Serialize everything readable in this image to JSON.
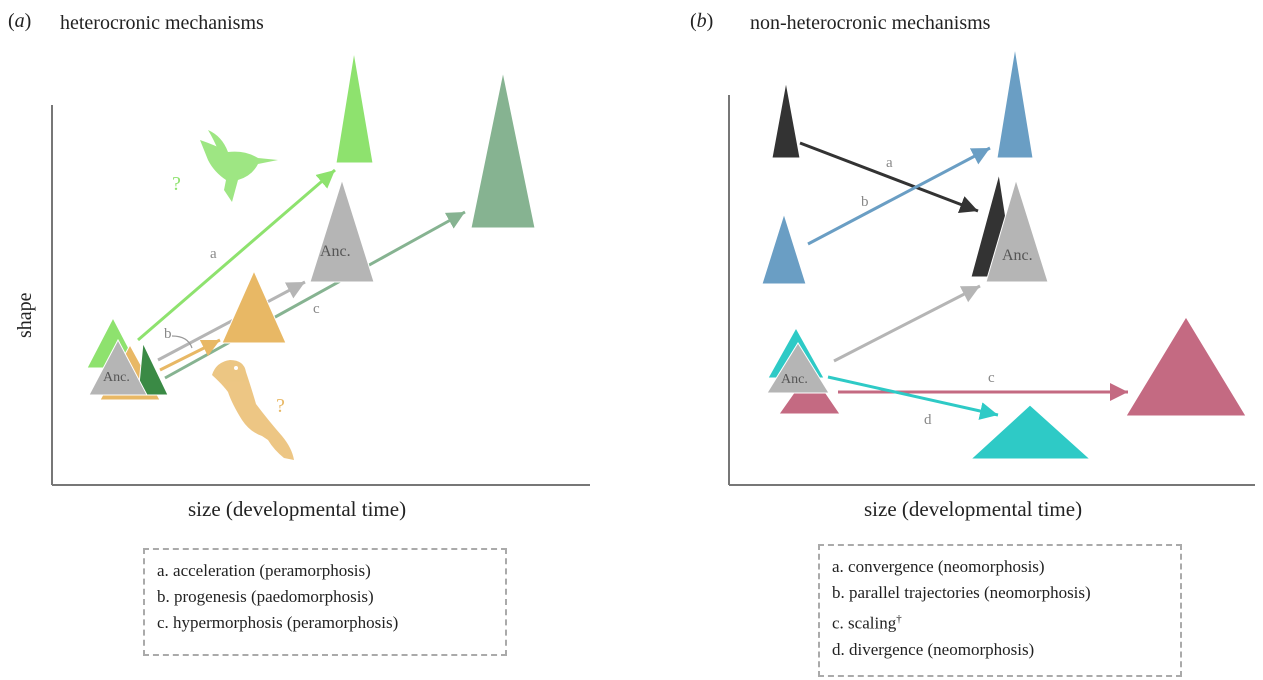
{
  "panels": [
    {
      "tag": "a",
      "title": "heterocronic mechanisms",
      "ylabel": "shape",
      "xlabel": "size (developmental time)",
      "anc_label": "Anc.",
      "arrow_labels": {
        "a": "a",
        "b": "b",
        "c": "c"
      },
      "question_marks": [
        "?",
        "?"
      ],
      "legend": [
        "a. acceleration (peramorphosis)",
        "b. progenesis (paedomorphosis)",
        "c. hypermorphosis (peramorphosis)"
      ],
      "icons": [
        "hummingbird-icon",
        "songbird-icon"
      ]
    },
    {
      "tag": "b",
      "title": "non-heterocronic mechanisms",
      "xlabel": "size (developmental time)",
      "anc_label": "Anc.",
      "arrow_labels": {
        "a": "a",
        "b": "b",
        "c": "c",
        "d": "d"
      },
      "legend": [
        "a. convergence (neomorphosis)",
        "b. parallel trajectories (neomorphosis)",
        "c. scaling",
        "d. divergence (neomorphosis)"
      ],
      "legend_dagger": "†"
    }
  ],
  "colors": {
    "light_green": "#8ee26e",
    "dark_green": "#3a8a45",
    "sage_green": "#86b391",
    "orange": "#e8b865",
    "grey": "#b5b5b5",
    "dark_grey": "#333333",
    "blue": "#6a9ec4",
    "cyan": "#2ecac6",
    "rose": "#c46a82"
  }
}
